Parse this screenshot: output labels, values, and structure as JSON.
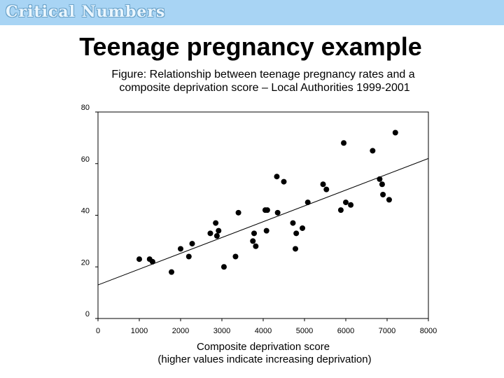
{
  "header": {
    "banner_text": "Critical Numbers",
    "slide_title": "Teenage pregnancy example"
  },
  "chart_data": {
    "type": "scatter",
    "title_lines": [
      "Figure: Relationship between teenage pregnancy rates and a",
      "composite deprivation score – Local Authorities 1999-2001"
    ],
    "xlabel_lines": [
      "Composite deprivation score",
      "(higher values indicate increasing deprivation)"
    ],
    "ylabel": "",
    "xlim": [
      0,
      8000
    ],
    "ylim": [
      0,
      80
    ],
    "xticks": [
      0,
      1000,
      2000,
      3000,
      4000,
      5000,
      6000,
      7000,
      8000
    ],
    "yticks": [
      0,
      20,
      40,
      60,
      80
    ],
    "grid": false,
    "trendline": {
      "x": [
        0,
        8000
      ],
      "y": [
        13,
        62
      ]
    },
    "points": [
      {
        "x": 1000,
        "y": 23
      },
      {
        "x": 1250,
        "y": 23
      },
      {
        "x": 1320,
        "y": 22
      },
      {
        "x": 1780,
        "y": 18
      },
      {
        "x": 2000,
        "y": 27
      },
      {
        "x": 2200,
        "y": 24
      },
      {
        "x": 2280,
        "y": 29
      },
      {
        "x": 2720,
        "y": 33
      },
      {
        "x": 2850,
        "y": 37
      },
      {
        "x": 2880,
        "y": 32
      },
      {
        "x": 2920,
        "y": 34
      },
      {
        "x": 3050,
        "y": 20
      },
      {
        "x": 3330,
        "y": 24
      },
      {
        "x": 3400,
        "y": 41
      },
      {
        "x": 3750,
        "y": 30
      },
      {
        "x": 3780,
        "y": 33
      },
      {
        "x": 3820,
        "y": 28
      },
      {
        "x": 4050,
        "y": 42
      },
      {
        "x": 4080,
        "y": 34
      },
      {
        "x": 4100,
        "y": 42
      },
      {
        "x": 4330,
        "y": 55
      },
      {
        "x": 4350,
        "y": 41
      },
      {
        "x": 4500,
        "y": 53
      },
      {
        "x": 4720,
        "y": 37
      },
      {
        "x": 4780,
        "y": 27
      },
      {
        "x": 4800,
        "y": 33
      },
      {
        "x": 4950,
        "y": 35
      },
      {
        "x": 5080,
        "y": 45
      },
      {
        "x": 5450,
        "y": 52
      },
      {
        "x": 5530,
        "y": 50
      },
      {
        "x": 5880,
        "y": 42
      },
      {
        "x": 5950,
        "y": 68
      },
      {
        "x": 6000,
        "y": 45
      },
      {
        "x": 6120,
        "y": 44
      },
      {
        "x": 6650,
        "y": 65
      },
      {
        "x": 6820,
        "y": 54
      },
      {
        "x": 6880,
        "y": 52
      },
      {
        "x": 6900,
        "y": 48
      },
      {
        "x": 7050,
        "y": 46
      },
      {
        "x": 7200,
        "y": 72
      }
    ]
  }
}
